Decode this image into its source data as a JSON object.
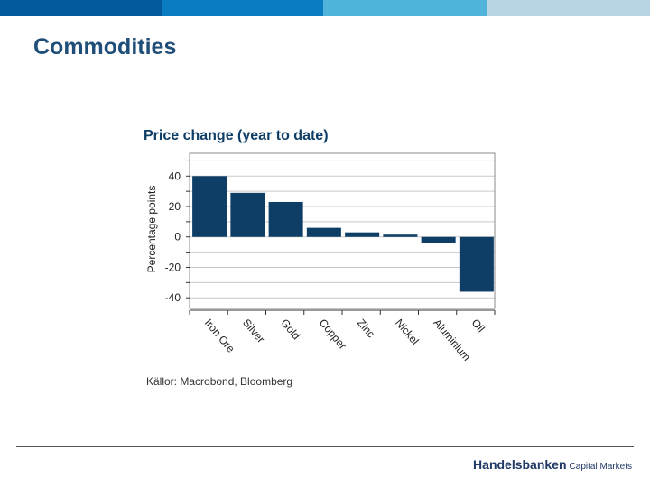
{
  "header": {
    "bar_colors": [
      "#005a9c",
      "#0a7dc0",
      "#4fb3da",
      "#b7d5e4"
    ]
  },
  "slide": {
    "title": "Commodities"
  },
  "chart_data": {
    "type": "bar",
    "title": "Price change (year to date)",
    "categories": [
      "Iron Ore",
      "Silver",
      "Gold",
      "Copper",
      "Zinc",
      "Nickel",
      "Aluminium",
      "Oil"
    ],
    "values": [
      40,
      29,
      23,
      6,
      3,
      1.5,
      -4,
      -36
    ],
    "xlabel": "",
    "ylabel": "Percentage points",
    "ylim": [
      -47,
      55
    ],
    "yticks": [
      40,
      20,
      0,
      -20,
      -40
    ],
    "grid": true,
    "bar_color": "#0e3d66"
  },
  "source": "Källor: Macrobond, Bloomberg",
  "footer": {
    "brand_main": "Handelsbanken",
    "brand_sub": "Capital Markets"
  }
}
